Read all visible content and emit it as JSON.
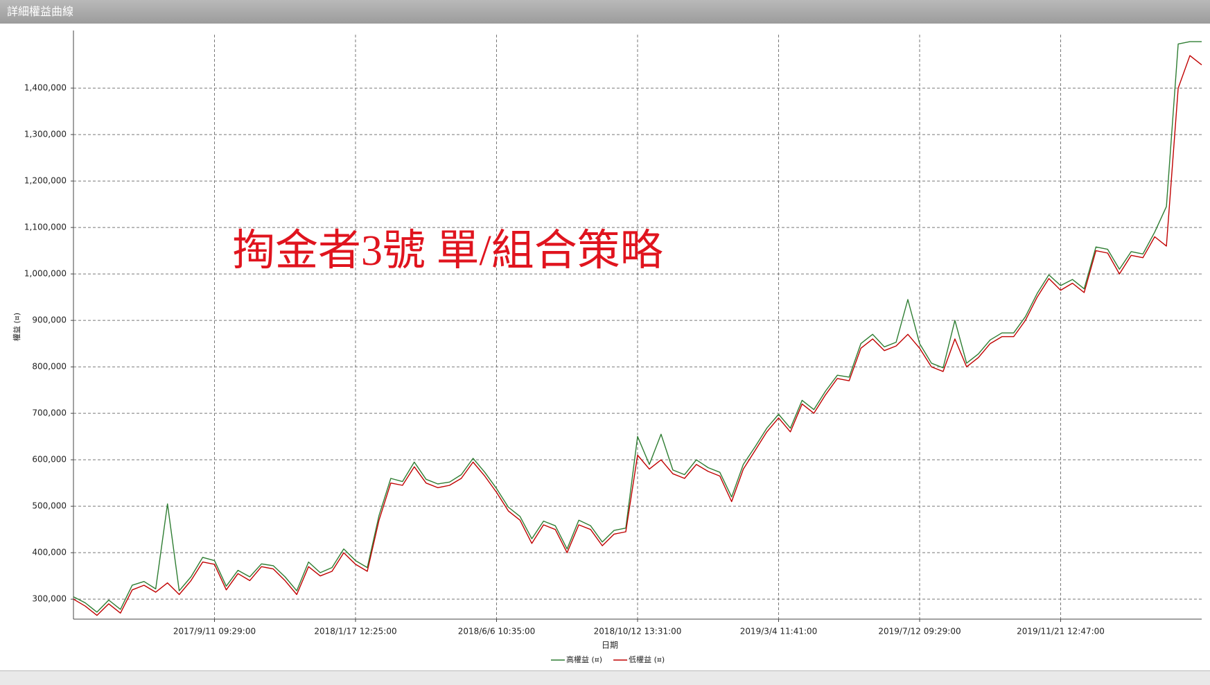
{
  "window": {
    "title": "詳細權益曲線"
  },
  "chart_data": {
    "type": "line",
    "x_label": "日期",
    "y_label": "權益 (¤)",
    "annotation": "掏金者3號  單/組合策略",
    "categories": [
      null,
      null,
      null,
      null,
      null,
      null,
      null,
      null,
      null,
      null,
      null,
      null,
      "2017/9/11 09:29:00",
      null,
      null,
      null,
      null,
      null,
      null,
      null,
      null,
      null,
      null,
      null,
      "2018/1/17 12:25:00",
      null,
      null,
      null,
      null,
      null,
      null,
      null,
      null,
      null,
      null,
      null,
      "2018/6/6 10:35:00",
      null,
      null,
      null,
      null,
      null,
      null,
      null,
      null,
      null,
      null,
      null,
      "2018/10/12 13:31:00",
      null,
      null,
      null,
      null,
      null,
      null,
      null,
      null,
      null,
      null,
      null,
      "2019/3/4 11:41:00",
      null,
      null,
      null,
      null,
      null,
      null,
      null,
      null,
      null,
      null,
      null,
      "2019/7/12 09:29:00",
      null,
      null,
      null,
      null,
      null,
      null,
      null,
      null,
      null,
      null,
      null,
      "2019/11/21 12:47:00",
      null,
      null,
      null,
      null,
      null,
      null,
      null,
      null,
      null,
      null,
      null,
      null
    ],
    "series": [
      {
        "name": "高權益 (¤)",
        "color": "#2e7d32",
        "values": [
          305000,
          292000,
          272000,
          298000,
          278000,
          330000,
          338000,
          322000,
          505000,
          318000,
          348000,
          390000,
          383000,
          328000,
          362000,
          348000,
          376000,
          372000,
          348000,
          318000,
          380000,
          357000,
          368000,
          408000,
          383000,
          368000,
          480000,
          560000,
          553000,
          595000,
          558000,
          548000,
          552000,
          568000,
          603000,
          573000,
          538000,
          498000,
          478000,
          430000,
          468000,
          458000,
          408000,
          470000,
          458000,
          423000,
          448000,
          453000,
          650000,
          590000,
          655000,
          578000,
          568000,
          600000,
          583000,
          573000,
          520000,
          590000,
          628000,
          668000,
          698000,
          668000,
          728000,
          708000,
          748000,
          782000,
          778000,
          850000,
          870000,
          843000,
          853000,
          945000,
          850000,
          808000,
          798000,
          900000,
          808000,
          828000,
          858000,
          873000,
          873000,
          908000,
          958000,
          998000,
          975000,
          988000,
          968000,
          1058000,
          1053000,
          1010000,
          1048000,
          1043000,
          1090000,
          1145000,
          1495000,
          1500000,
          1500000
        ]
      },
      {
        "name": "低權益 (¤)",
        "color": "#c00000",
        "values": [
          300000,
          285000,
          265000,
          290000,
          270000,
          320000,
          330000,
          315000,
          335000,
          310000,
          340000,
          380000,
          375000,
          320000,
          355000,
          340000,
          370000,
          365000,
          340000,
          310000,
          370000,
          350000,
          360000,
          400000,
          375000,
          360000,
          470000,
          550000,
          545000,
          585000,
          550000,
          540000,
          545000,
          560000,
          595000,
          565000,
          530000,
          490000,
          470000,
          420000,
          460000,
          450000,
          400000,
          460000,
          450000,
          415000,
          440000,
          445000,
          610000,
          580000,
          600000,
          570000,
          560000,
          590000,
          575000,
          565000,
          510000,
          580000,
          620000,
          660000,
          690000,
          660000,
          720000,
          700000,
          740000,
          775000,
          770000,
          840000,
          860000,
          835000,
          845000,
          870000,
          840000,
          800000,
          790000,
          860000,
          800000,
          820000,
          850000,
          865000,
          865000,
          900000,
          950000,
          990000,
          965000,
          980000,
          960000,
          1050000,
          1045000,
          1000000,
          1040000,
          1035000,
          1080000,
          1060000,
          1400000,
          1470000,
          1450000
        ]
      }
    ],
    "ylim": [
      257000,
      1515000
    ],
    "yticks": [
      {
        "value": 300000,
        "label": "300,000"
      },
      {
        "value": 400000,
        "label": "400,000"
      },
      {
        "value": 500000,
        "label": "500,000"
      },
      {
        "value": 600000,
        "label": "600,000"
      },
      {
        "value": 700000,
        "label": "700,000"
      },
      {
        "value": 800000,
        "label": "800,000"
      },
      {
        "value": 900000,
        "label": "900,000"
      },
      {
        "value": 1000000,
        "label": "1,000,000"
      },
      {
        "value": 1100000,
        "label": "1,100,000"
      },
      {
        "value": 1200000,
        "label": "1,200,000"
      },
      {
        "value": 1300000,
        "label": "1,300,000"
      },
      {
        "value": 1400000,
        "label": "1,400,000"
      }
    ],
    "grid": true,
    "legend": "bottom"
  }
}
